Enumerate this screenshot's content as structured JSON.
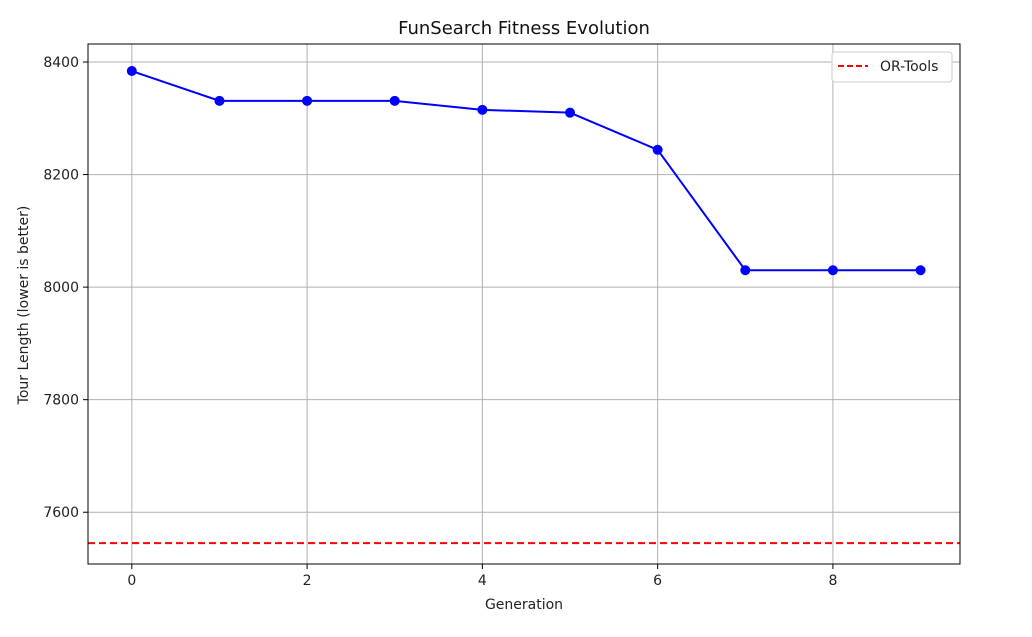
{
  "chart_data": {
    "type": "line",
    "title": "FunSearch Fitness Evolution",
    "xlabel": "Generation",
    "ylabel": "Tour Length (lower is better)",
    "xlim": [
      -0.5,
      9.45
    ],
    "ylim": [
      7508,
      8432
    ],
    "xticks": [
      0,
      2,
      4,
      6,
      8
    ],
    "yticks": [
      7600,
      7800,
      8000,
      8200,
      8400
    ],
    "grid": true,
    "legend_position": "top-right",
    "series": [
      {
        "x": [
          0,
          1,
          2,
          3,
          4,
          5,
          6,
          7,
          8,
          9
        ],
        "values": [
          8384,
          8331,
          8331,
          8331,
          8315,
          8310,
          8244,
          8030,
          8030,
          8030
        ],
        "color": "#0000ff",
        "marker": "circle",
        "linestyle": "solid"
      }
    ],
    "reference_lines": [
      {
        "name": "OR-Tools",
        "value": 7545,
        "color": "#ff0000",
        "linestyle": "dashed"
      }
    ]
  }
}
